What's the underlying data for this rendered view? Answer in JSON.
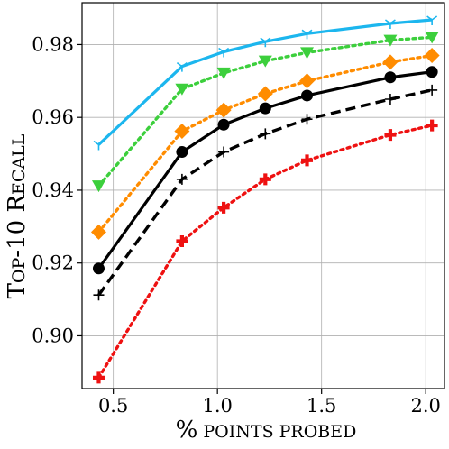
{
  "chart_data": {
    "type": "line",
    "title": "",
    "xlabel": {
      "first": "%",
      "rest": " points probed"
    },
    "ylabel": {
      "part1": "T",
      "part2": "op",
      "part3": "-10 R",
      "part4": "ecall"
    },
    "xlim": [
      0.35,
      2.09
    ],
    "ylim": [
      0.8855,
      0.9915
    ],
    "xticks": [
      0.5,
      1.0,
      1.5,
      2.0
    ],
    "xtick_labels": [
      "0.5",
      "1.0",
      "1.5",
      "2.0"
    ],
    "yticks": [
      0.9,
      0.92,
      0.94,
      0.96,
      0.98
    ],
    "ytick_labels": [
      "0.90",
      "0.92",
      "0.94",
      "0.96",
      "0.98"
    ],
    "grid": true,
    "series": [
      {
        "color": "#1cb6ee",
        "dash": "",
        "marker": "tri_down",
        "x": [
          0.43,
          0.83,
          1.03,
          1.23,
          1.43,
          1.83,
          2.03
        ],
        "y": [
          0.9525,
          0.974,
          0.978,
          0.9808,
          0.983,
          0.9858,
          0.9868
        ]
      },
      {
        "color": "#3ccf3c",
        "dash": "dotted",
        "marker": "triangle_down",
        "x": [
          0.43,
          0.83,
          1.03,
          1.23,
          1.43,
          1.83,
          2.03
        ],
        "y": [
          0.9412,
          0.9678,
          0.9722,
          0.9755,
          0.9778,
          0.9812,
          0.982
        ]
      },
      {
        "color": "#ff8c00",
        "dash": "dotted",
        "marker": "diamond",
        "x": [
          0.43,
          0.83,
          1.03,
          1.23,
          1.43,
          1.83,
          2.03
        ],
        "y": [
          0.9285,
          0.9562,
          0.962,
          0.9665,
          0.97,
          0.9752,
          0.977
        ]
      },
      {
        "color": "#000000",
        "dash": "",
        "marker": "circle",
        "x": [
          0.43,
          0.83,
          1.03,
          1.23,
          1.43,
          1.83,
          2.03
        ],
        "y": [
          0.9185,
          0.9505,
          0.958,
          0.9625,
          0.966,
          0.971,
          0.9725
        ]
      },
      {
        "color": "#000000",
        "dash": "dashed",
        "marker": "plus",
        "x": [
          0.43,
          0.83,
          1.03,
          1.23,
          1.43,
          1.83,
          2.03
        ],
        "y": [
          0.9112,
          0.943,
          0.9505,
          0.9555,
          0.9595,
          0.965,
          0.9675
        ]
      },
      {
        "color": "#ee1111",
        "dash": "dotted",
        "marker": "thick_plus",
        "x": [
          0.43,
          0.83,
          1.03,
          1.23,
          1.43,
          1.83,
          2.03
        ],
        "y": [
          0.8885,
          0.926,
          0.9352,
          0.943,
          0.9482,
          0.9552,
          0.9578
        ]
      }
    ]
  }
}
